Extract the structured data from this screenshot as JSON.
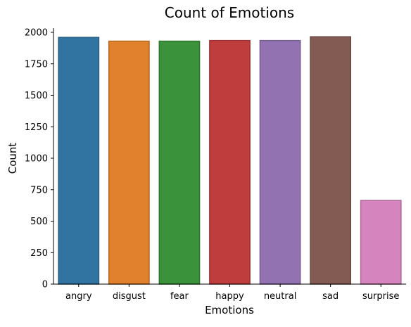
{
  "chart_data": {
    "type": "bar",
    "title": "Count of Emotions",
    "xlabel": "Emotions",
    "ylabel": "Count",
    "categories": [
      "angry",
      "disgust",
      "fear",
      "happy",
      "neutral",
      "sad",
      "surprise"
    ],
    "values": [
      1960,
      1930,
      1930,
      1935,
      1935,
      1965,
      665
    ],
    "colors": [
      "#3274a1",
      "#e1812c",
      "#3a923a",
      "#c03d3e",
      "#9372b2",
      "#845b53",
      "#d684bd"
    ],
    "ylim": [
      0,
      2000
    ],
    "yticks": [
      0,
      250,
      500,
      750,
      1000,
      1250,
      1500,
      1750,
      2000
    ],
    "grid": false,
    "legend": "none"
  }
}
